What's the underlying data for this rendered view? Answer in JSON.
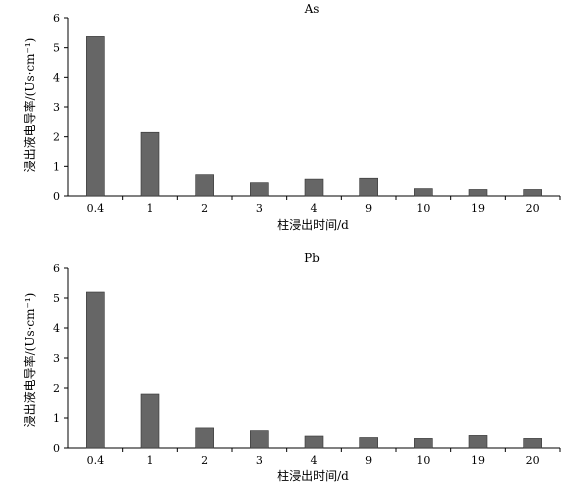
{
  "chart_data": [
    {
      "type": "bar",
      "title": "As",
      "xlabel": "柱浸出时间/d",
      "ylabel": "浸出液电导率/(Us·cm⁻¹)",
      "categories": [
        "0.4",
        "1",
        "2",
        "3",
        "4",
        "9",
        "10",
        "19",
        "20"
      ],
      "values": [
        5.38,
        2.15,
        0.72,
        0.45,
        0.57,
        0.6,
        0.25,
        0.22,
        0.22
      ],
      "ylim": [
        0,
        6
      ],
      "yticks": [
        0,
        1,
        2,
        3,
        4,
        5,
        6
      ],
      "grid": false,
      "bar_color": "#666666"
    },
    {
      "type": "bar",
      "title": "Pb",
      "xlabel": "柱浸出时间/d",
      "ylabel": "浸出液电导率/(Us·cm⁻¹)",
      "categories": [
        "0.4",
        "1",
        "2",
        "3",
        "4",
        "9",
        "10",
        "19",
        "20"
      ],
      "values": [
        5.2,
        1.8,
        0.67,
        0.58,
        0.4,
        0.35,
        0.32,
        0.42,
        0.32
      ],
      "ylim": [
        0,
        6
      ],
      "yticks": [
        0,
        1,
        2,
        3,
        4,
        5,
        6
      ],
      "grid": false,
      "bar_color": "#666666"
    }
  ]
}
